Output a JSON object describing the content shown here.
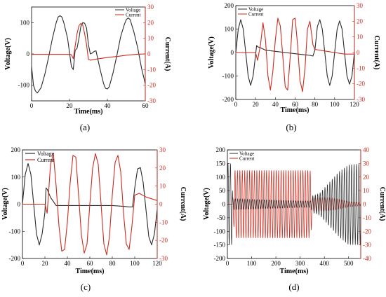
{
  "colors": {
    "voltage": "#2b2b2b",
    "current": "#cc2b1e"
  },
  "chart_data": [
    {
      "id": "a",
      "type": "line",
      "caption": "(a)",
      "xlabel": "Time(ms)",
      "ylabel": "Voltage(V)",
      "y2label": "Current(A)",
      "xlim": [
        0,
        60
      ],
      "ylim": [
        -150,
        150
      ],
      "y2lim": [
        -30,
        30
      ],
      "xticks": [
        0,
        20,
        40,
        60
      ],
      "yticks": [
        -100,
        0,
        100
      ],
      "y2ticks": [
        -30,
        -20,
        -10,
        0,
        10,
        20,
        30
      ],
      "legend": [
        "Voltage",
        "Current"
      ],
      "legend_position": "top-right",
      "series": [
        {
          "name": "Voltage",
          "axis": "left",
          "points": [
            [
              0,
              -40
            ],
            [
              1,
              -100
            ],
            [
              2,
              -118
            ],
            [
              3,
              -125
            ],
            [
              5,
              -108
            ],
            [
              7,
              -65
            ],
            [
              9,
              -10
            ],
            [
              11,
              50
            ],
            [
              13,
              100
            ],
            [
              14,
              118
            ],
            [
              15,
              122
            ],
            [
              16,
              118
            ],
            [
              17,
              100
            ],
            [
              19,
              50
            ],
            [
              21,
              -40
            ],
            [
              22,
              -50
            ],
            [
              23,
              12
            ],
            [
              24,
              18
            ],
            [
              25,
              50
            ],
            [
              26,
              88
            ],
            [
              27,
              100
            ],
            [
              28,
              98
            ],
            [
              29,
              83
            ],
            [
              30,
              30
            ],
            [
              31,
              0
            ],
            [
              32,
              3
            ],
            [
              33,
              8
            ],
            [
              34,
              10
            ],
            [
              36,
              -45
            ],
            [
              38,
              -95
            ],
            [
              39,
              -110
            ],
            [
              40,
              -112
            ],
            [
              41,
              -105
            ],
            [
              43,
              -60
            ],
            [
              45,
              -5
            ],
            [
              47,
              55
            ],
            [
              49,
              95
            ],
            [
              50,
              110
            ],
            [
              51,
              115
            ],
            [
              52,
              110
            ],
            [
              54,
              70
            ],
            [
              56,
              20
            ],
            [
              58,
              -45
            ],
            [
              60,
              -95
            ]
          ]
        },
        {
          "name": "Current",
          "axis": "right",
          "points": [
            [
              0,
              -0.3
            ],
            [
              20,
              -0.3
            ],
            [
              21,
              -0.5
            ],
            [
              22,
              -3
            ],
            [
              23,
              5
            ],
            [
              24,
              13
            ],
            [
              25,
              18
            ],
            [
              26,
              19.5
            ],
            [
              27,
              18.5
            ],
            [
              28,
              13
            ],
            [
              29,
              6
            ],
            [
              30,
              -3.5
            ],
            [
              31,
              -4
            ],
            [
              34,
              -3.3
            ],
            [
              40,
              -2.3
            ],
            [
              46,
              -1.5
            ],
            [
              50,
              -0.8
            ],
            [
              56,
              -0.2
            ],
            [
              60,
              0
            ]
          ]
        }
      ]
    },
    {
      "id": "b",
      "type": "line",
      "caption": "(b)",
      "xlabel": "Time(ms)",
      "ylabel": "Voltage(V)",
      "y2label": "Current(A)",
      "xlim": [
        0,
        120
      ],
      "ylim": [
        -200,
        200
      ],
      "y2lim": [
        -30,
        30
      ],
      "xticks": [
        0,
        20,
        40,
        60,
        80,
        100,
        120
      ],
      "yticks": [
        -200,
        -100,
        0,
        100,
        200
      ],
      "y2ticks": [
        -30,
        -20,
        -10,
        0,
        10,
        20,
        30
      ],
      "legend": [
        "Voltage",
        "Current"
      ],
      "legend_position": "top-left",
      "series": [
        {
          "name": "Voltage",
          "axis": "left",
          "points": [
            [
              0,
              0
            ],
            [
              2.5,
              100
            ],
            [
              5,
              140
            ],
            [
              7.5,
              100
            ],
            [
              10,
              0
            ],
            [
              12.5,
              -100
            ],
            [
              15,
              -140
            ],
            [
              17.5,
              -100
            ],
            [
              20,
              -10
            ],
            [
              21,
              30
            ],
            [
              22,
              25
            ],
            [
              25,
              20
            ],
            [
              30,
              10
            ],
            [
              40,
              5
            ],
            [
              50,
              0
            ],
            [
              60,
              -5
            ],
            [
              70,
              -10
            ],
            [
              75,
              -12
            ],
            [
              78,
              -15
            ],
            [
              80,
              10
            ],
            [
              82.5,
              110
            ],
            [
              85,
              140
            ],
            [
              87.5,
              100
            ],
            [
              90,
              0
            ],
            [
              92.5,
              -100
            ],
            [
              95,
              -140
            ],
            [
              97.5,
              -100
            ],
            [
              100,
              0
            ],
            [
              102.5,
              100
            ],
            [
              105,
              135
            ],
            [
              107.5,
              100
            ],
            [
              110,
              0
            ],
            [
              112.5,
              -100
            ],
            [
              115,
              -135
            ],
            [
              117.5,
              -100
            ],
            [
              120,
              0
            ]
          ]
        },
        {
          "name": "Current",
          "axis": "right",
          "points": [
            [
              0,
              0
            ],
            [
              20,
              0
            ],
            [
              22,
              -5
            ],
            [
              25,
              5
            ],
            [
              27.5,
              19
            ],
            [
              30,
              8
            ],
            [
              32.5,
              -15
            ],
            [
              35,
              -24
            ],
            [
              37.5,
              -12
            ],
            [
              40,
              8
            ],
            [
              42.5,
              22
            ],
            [
              45,
              17
            ],
            [
              47.5,
              -2
            ],
            [
              50,
              -22
            ],
            [
              52.5,
              -24
            ],
            [
              55,
              -3
            ],
            [
              57.5,
              21
            ],
            [
              60,
              22
            ],
            [
              62.5,
              5
            ],
            [
              65,
              -18
            ],
            [
              67.5,
              -25
            ],
            [
              70,
              -10
            ],
            [
              72.5,
              15
            ],
            [
              75,
              20
            ],
            [
              78,
              5
            ],
            [
              80,
              2
            ],
            [
              90,
              1
            ],
            [
              100,
              0
            ],
            [
              110,
              -1
            ],
            [
              120,
              -1
            ]
          ]
        }
      ]
    },
    {
      "id": "c",
      "type": "line",
      "caption": "(c)",
      "xlabel": "Time(ms)",
      "ylabel": "Voltage(V)",
      "y2label": "Current(A)",
      "xlim": [
        0,
        120
      ],
      "ylim": [
        -200,
        200
      ],
      "y2lim": [
        -30,
        30
      ],
      "xticks": [
        0,
        20,
        40,
        60,
        80,
        100,
        120
      ],
      "yticks": [
        -200,
        -100,
        0,
        100,
        200
      ],
      "y2ticks": [
        -30,
        -20,
        -10,
        0,
        10,
        20,
        30
      ],
      "legend": [
        "Voltage",
        "Current"
      ],
      "legend_position": "top-left",
      "series": [
        {
          "name": "Voltage",
          "axis": "left",
          "points": [
            [
              0,
              0
            ],
            [
              2.5,
              110
            ],
            [
              5,
              150
            ],
            [
              7.5,
              110
            ],
            [
              10,
              0
            ],
            [
              12.5,
              -110
            ],
            [
              15,
              -150
            ],
            [
              17.5,
              -110
            ],
            [
              20,
              -30
            ],
            [
              21,
              60
            ],
            [
              22,
              55
            ],
            [
              25,
              25
            ],
            [
              30,
              -5
            ],
            [
              40,
              -5
            ],
            [
              50,
              -5
            ],
            [
              60,
              -5
            ],
            [
              70,
              -5
            ],
            [
              80,
              -5
            ],
            [
              90,
              -8
            ],
            [
              95,
              -10
            ],
            [
              98,
              -10
            ],
            [
              100,
              60
            ],
            [
              102.5,
              130
            ],
            [
              105,
              135
            ],
            [
              107.5,
              80
            ],
            [
              110,
              -20
            ],
            [
              112.5,
              -120
            ],
            [
              115,
              -150
            ],
            [
              117.5,
              -110
            ],
            [
              120,
              -20
            ]
          ]
        },
        {
          "name": "Current",
          "axis": "right",
          "points": [
            [
              0,
              0
            ],
            [
              20,
              0
            ],
            [
              22,
              -5
            ],
            [
              25,
              22
            ],
            [
              27.5,
              28
            ],
            [
              30,
              10
            ],
            [
              32.5,
              -12
            ],
            [
              35,
              -26
            ],
            [
              37.5,
              -25
            ],
            [
              40,
              -10
            ],
            [
              42.5,
              12
            ],
            [
              45,
              27
            ],
            [
              47.5,
              26
            ],
            [
              50,
              5
            ],
            [
              52.5,
              -17
            ],
            [
              55,
              -27
            ],
            [
              57.5,
              -22
            ],
            [
              60,
              0
            ],
            [
              62.5,
              20
            ],
            [
              65,
              28
            ],
            [
              67.5,
              22
            ],
            [
              70,
              0
            ],
            [
              72.5,
              -22
            ],
            [
              75,
              -28
            ],
            [
              77.5,
              -18
            ],
            [
              80,
              5
            ],
            [
              82.5,
              23
            ],
            [
              85,
              27
            ],
            [
              87.5,
              18
            ],
            [
              90,
              -5
            ],
            [
              92.5,
              -22
            ],
            [
              95,
              -25
            ],
            [
              97.5,
              -12
            ],
            [
              100,
              5
            ],
            [
              104,
              6
            ],
            [
              110,
              4
            ],
            [
              120,
              2
            ]
          ]
        }
      ]
    },
    {
      "id": "d",
      "type": "line",
      "caption": "(d)",
      "xlabel": "Time(ms)",
      "ylabel": "Voltage(V)",
      "y2label": "Current(A)",
      "xlim": [
        0,
        550
      ],
      "ylim": [
        -200,
        200
      ],
      "y2lim": [
        -40,
        40
      ],
      "xticks": [
        0,
        100,
        200,
        300,
        400,
        500
      ],
      "yticks": [
        -200,
        -150,
        -100,
        -50,
        0,
        50,
        100,
        150,
        200
      ],
      "y2ticks": [
        -40,
        -30,
        -20,
        -10,
        0,
        10,
        20,
        30,
        40
      ],
      "legend": [
        "Voltage",
        "Current"
      ],
      "legend_position": "top-left",
      "voltage_envelope": [
        [
          0,
          150,
          -150
        ],
        [
          20,
          150,
          -150
        ],
        [
          22,
          20,
          -20
        ],
        [
          300,
          12,
          -12
        ],
        [
          345,
          12,
          -12
        ],
        [
          350,
          30,
          -30
        ],
        [
          380,
          40,
          -40
        ],
        [
          420,
          80,
          -80
        ],
        [
          460,
          120,
          -120
        ],
        [
          500,
          145,
          -150
        ],
        [
          550,
          150,
          -150
        ]
      ],
      "current_envelope": [
        [
          0,
          0,
          0
        ],
        [
          20,
          0,
          0
        ],
        [
          30,
          25,
          -25
        ],
        [
          340,
          25,
          -25
        ],
        [
          345,
          24,
          -24
        ],
        [
          350,
          5,
          -5
        ],
        [
          400,
          5,
          -5
        ],
        [
          450,
          4,
          -4
        ],
        [
          500,
          2,
          -2
        ],
        [
          550,
          1,
          -1
        ]
      ],
      "period_ms": 10,
      "series": [
        {
          "name": "Voltage",
          "axis": "left"
        },
        {
          "name": "Current",
          "axis": "right"
        }
      ]
    }
  ]
}
